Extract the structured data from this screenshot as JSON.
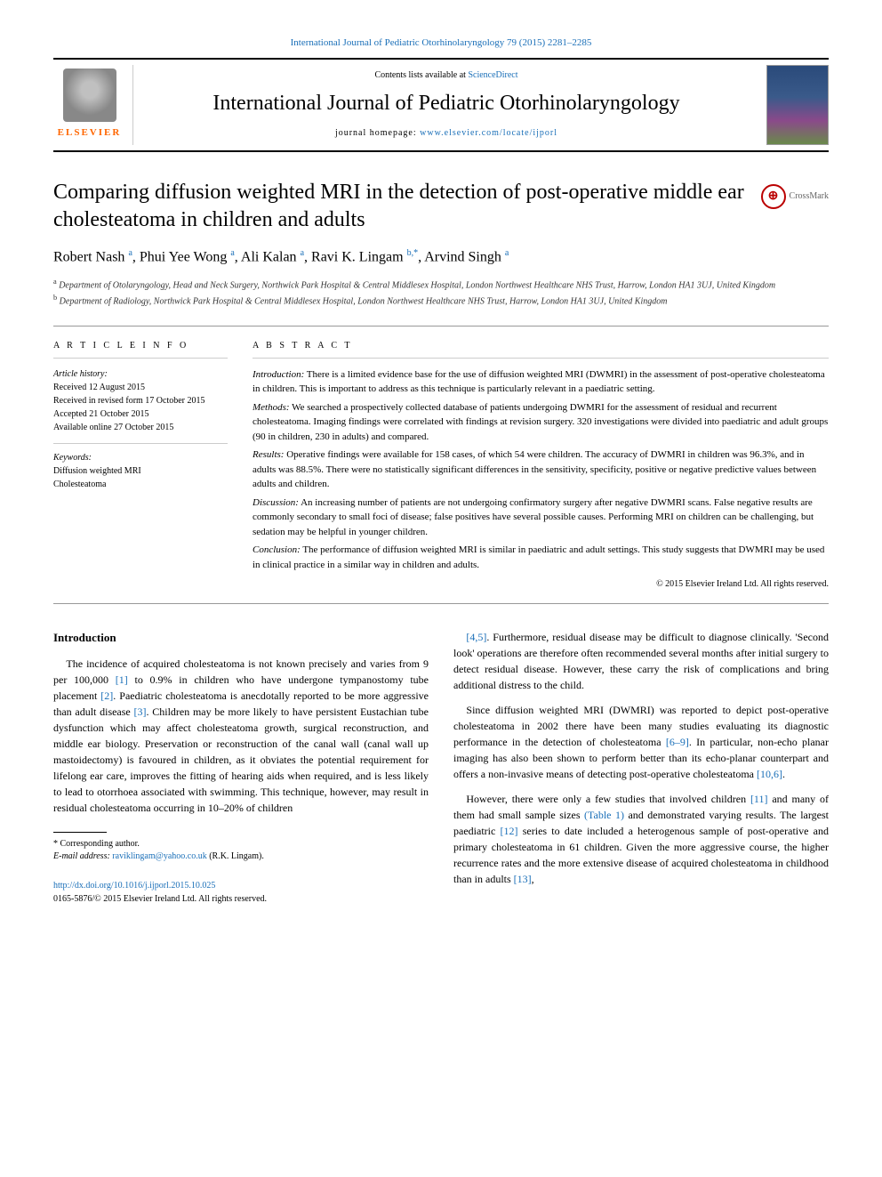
{
  "top_citation": "International Journal of Pediatric Otorhinolaryngology 79 (2015) 2281–2285",
  "masthead": {
    "contents_prefix": "Contents lists available at ",
    "contents_link": "ScienceDirect",
    "journal_name": "International Journal of Pediatric Otorhinolaryngology",
    "homepage_prefix": "journal homepage: ",
    "homepage_url": "www.elsevier.com/locate/ijporl",
    "publisher": "ELSEVIER"
  },
  "crossmark_label": "CrossMark",
  "title": "Comparing diffusion weighted MRI in the detection of post-operative middle ear cholesteatoma in children and adults",
  "authors_html": [
    {
      "name": "Robert Nash",
      "sup": "a"
    },
    {
      "name": "Phui Yee Wong",
      "sup": "a"
    },
    {
      "name": "Ali Kalan",
      "sup": "a"
    },
    {
      "name": "Ravi K. Lingam",
      "sup": "b,*"
    },
    {
      "name": "Arvind Singh",
      "sup": "a"
    }
  ],
  "affiliations": [
    {
      "sup": "a",
      "text": "Department of Otolaryngology, Head and Neck Surgery, Northwick Park Hospital & Central Middlesex Hospital, London Northwest Healthcare NHS Trust, Harrow, London HA1 3UJ, United Kingdom"
    },
    {
      "sup": "b",
      "text": "Department of Radiology, Northwick Park Hospital & Central Middlesex Hospital, London Northwest Healthcare NHS Trust, Harrow, London HA1 3UJ, United Kingdom"
    }
  ],
  "article_info": {
    "heading": "A R T I C L E  I N F O",
    "history_label": "Article history:",
    "received": "Received 12 August 2015",
    "revised": "Received in revised form 17 October 2015",
    "accepted": "Accepted 21 October 2015",
    "online": "Available online 27 October 2015",
    "keywords_label": "Keywords:",
    "keywords": [
      "Diffusion weighted MRI",
      "Cholesteatoma"
    ]
  },
  "abstract": {
    "heading": "A B S T R A C T",
    "sections": [
      {
        "label": "Introduction:",
        "text": "There is a limited evidence base for the use of diffusion weighted MRI (DWMRI) in the assessment of post-operative cholesteatoma in children. This is important to address as this technique is particularly relevant in a paediatric setting."
      },
      {
        "label": "Methods:",
        "text": "We searched a prospectively collected database of patients undergoing DWMRI for the assessment of residual and recurrent cholesteatoma. Imaging findings were correlated with findings at revision surgery. 320 investigations were divided into paediatric and adult groups (90 in children, 230 in adults) and compared."
      },
      {
        "label": "Results:",
        "text": "Operative findings were available for 158 cases, of which 54 were children. The accuracy of DWMRI in children was 96.3%, and in adults was 88.5%. There were no statistically significant differences in the sensitivity, specificity, positive or negative predictive values between adults and children."
      },
      {
        "label": "Discussion:",
        "text": "An increasing number of patients are not undergoing confirmatory surgery after negative DWMRI scans. False negative results are commonly secondary to small foci of disease; false positives have several possible causes. Performing MRI on children can be challenging, but sedation may be helpful in younger children."
      },
      {
        "label": "Conclusion:",
        "text": "The performance of diffusion weighted MRI is similar in paediatric and adult settings. This study suggests that DWMRI may be used in clinical practice in a similar way in children and adults."
      }
    ],
    "copyright": "© 2015 Elsevier Ireland Ltd. All rights reserved."
  },
  "body": {
    "intro_heading": "Introduction",
    "left_paras": [
      "The incidence of acquired cholesteatoma is not known precisely and varies from 9 per 100,000 [1] to 0.9% in children who have undergone tympanostomy tube placement [2]. Paediatric cholesteatoma is anecdotally reported to be more aggressive than adult disease [3]. Children may be more likely to have persistent Eustachian tube dysfunction which may affect cholesteatoma growth, surgical reconstruction, and middle ear biology. Preservation or reconstruction of the canal wall (canal wall up mastoidectomy) is favoured in children, as it obviates the potential requirement for lifelong ear care, improves the fitting of hearing aids when required, and is less likely to lead to otorrhoea associated with swimming. This technique, however, may result in residual cholesteatoma occurring in 10–20% of children"
    ],
    "right_paras": [
      "[4,5]. Furthermore, residual disease may be difficult to diagnose clinically. 'Second look' operations are therefore often recommended several months after initial surgery to detect residual disease. However, these carry the risk of complications and bring additional distress to the child.",
      "Since diffusion weighted MRI (DWMRI) was reported to depict post-operative cholesteatoma in 2002 there have been many studies evaluating its diagnostic performance in the detection of cholesteatoma [6–9]. In particular, non-echo planar imaging has also been shown to perform better than its echo-planar counterpart and offers a non-invasive means of detecting post-operative cholesteatoma [10,6].",
      "However, there were only a few studies that involved children [11] and many of them had small sample sizes (Table 1) and demonstrated varying results. The largest paediatric [12] series to date included a heterogenous sample of post-operative and primary cholesteatoma in 61 children. Given the more aggressive course, the higher recurrence rates and the more extensive disease of acquired cholesteatoma in childhood than in adults [13],"
    ]
  },
  "footnote": {
    "corresponding": "* Corresponding author.",
    "email_label": "E-mail address: ",
    "email": "raviklingam@yahoo.co.uk",
    "email_suffix": " (R.K. Lingam)."
  },
  "doi": {
    "url": "http://dx.doi.org/10.1016/j.ijporl.2015.10.025",
    "issn_line": "0165-5876/© 2015 Elsevier Ireland Ltd. All rights reserved."
  },
  "colors": {
    "link": "#1a6fb8",
    "elsevier_orange": "#ff6600",
    "crossmark_red": "#b00020"
  }
}
